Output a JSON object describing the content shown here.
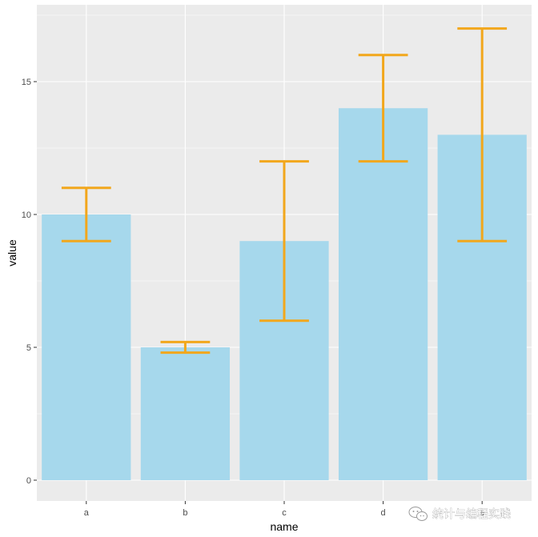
{
  "chart_data": {
    "type": "bar",
    "categories": [
      "a",
      "b",
      "c",
      "d",
      "e"
    ],
    "values": [
      10,
      5,
      9,
      14,
      13
    ],
    "error_low": [
      9,
      4.8,
      6,
      12,
      9
    ],
    "error_high": [
      11,
      5.2,
      12,
      16,
      17
    ],
    "xlabel": "name",
    "ylabel": "value",
    "ylim": [
      0,
      17.85
    ],
    "yticks": [
      0,
      5,
      10,
      15
    ],
    "grid": true,
    "colors": {
      "panel": "#ebebeb",
      "grid": "#ffffff",
      "bar": "#a6d8ec",
      "error_bar": "#f2a71c"
    }
  },
  "watermark": {
    "text": "统计与编程实践",
    "icon": "wechat-icon"
  }
}
